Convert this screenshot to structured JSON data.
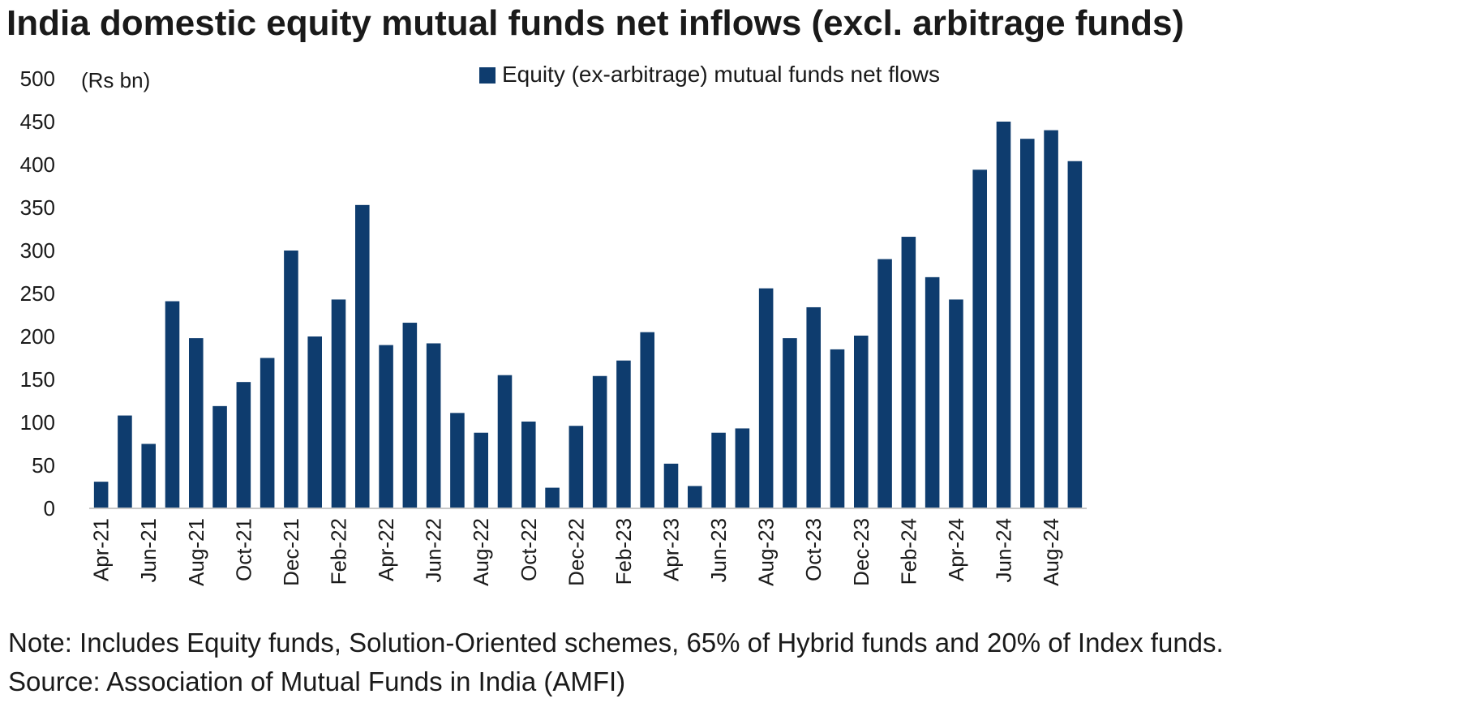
{
  "chart_data": {
    "type": "bar",
    "title": "India domestic equity mutual funds net inflows (excl. arbitrage funds)",
    "ylabel": "(Rs bn)",
    "ylim": [
      0,
      500
    ],
    "yticks": [
      0,
      50,
      100,
      150,
      200,
      250,
      300,
      350,
      400,
      450,
      500
    ],
    "legend_position": "top-center",
    "grid": false,
    "categories": [
      "Apr-21",
      "May-21",
      "Jun-21",
      "Jul-21",
      "Aug-21",
      "Sep-21",
      "Oct-21",
      "Nov-21",
      "Dec-21",
      "Jan-22",
      "Feb-22",
      "Mar-22",
      "Apr-22",
      "May-22",
      "Jun-22",
      "Jul-22",
      "Aug-22",
      "Sep-22",
      "Oct-22",
      "Nov-22",
      "Dec-22",
      "Jan-23",
      "Feb-23",
      "Mar-23",
      "Apr-23",
      "May-23",
      "Jun-23",
      "Jul-23",
      "Aug-23",
      "Sep-23",
      "Oct-23",
      "Nov-23",
      "Dec-23",
      "Jan-24",
      "Feb-24",
      "Mar-24",
      "Apr-24",
      "May-24",
      "Jun-24",
      "Jul-24",
      "Aug-24",
      "Sep-24"
    ],
    "tick_labels": [
      "Apr-21",
      "Jun-21",
      "Aug-21",
      "Oct-21",
      "Dec-21",
      "Feb-22",
      "Apr-22",
      "Jun-22",
      "Aug-22",
      "Oct-22",
      "Dec-22",
      "Feb-23",
      "Apr-23",
      "Jun-23",
      "Aug-23",
      "Oct-23",
      "Dec-23",
      "Feb-24",
      "Apr-24",
      "Jun-24",
      "Aug-24"
    ],
    "series": [
      {
        "name": "Equity (ex-arbitrage) mutual funds net flows",
        "color": "#0e3c6e",
        "values": [
          31,
          108,
          75,
          241,
          198,
          119,
          147,
          175,
          300,
          200,
          243,
          353,
          190,
          216,
          192,
          111,
          88,
          155,
          101,
          24,
          96,
          154,
          172,
          205,
          52,
          26,
          88,
          93,
          256,
          198,
          234,
          185,
          201,
          290,
          316,
          269,
          243,
          394,
          450,
          430,
          440,
          404
        ]
      }
    ]
  },
  "note": "Note: Includes Equity funds, Solution-Oriented schemes, 65% of Hybrid funds and 20% of Index funds.",
  "source": "Source: Association of Mutual Funds in India (AMFI)"
}
